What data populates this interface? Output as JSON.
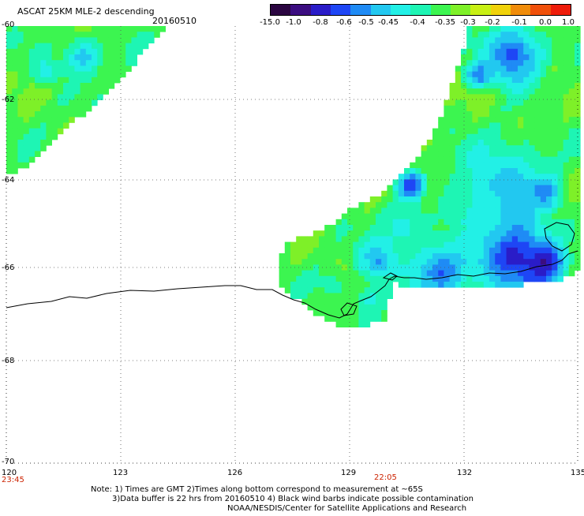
{
  "header": {
    "title": "ASCAT 25KM MLE-2 descending",
    "date": "20160510"
  },
  "colorbar": {
    "labels": [
      "-15.0",
      "-1.0",
      "-0.8",
      "-0.6",
      "-0.5",
      "-0.45",
      "-0.4",
      "-0.35",
      "-0.3",
      "-0.2",
      "-0.1",
      "0.0",
      "1.0"
    ],
    "colors": [
      "#2a0540",
      "#3b0d80",
      "#2a1cc8",
      "#1e46f5",
      "#1f8bf5",
      "#22c8f0",
      "#22f0e6",
      "#1ef5b4",
      "#3cf550",
      "#7ef028",
      "#c8f014",
      "#f0d20a",
      "#f08c0a",
      "#f0500a",
      "#ee1c0a"
    ]
  },
  "map": {
    "lat_labels": [
      "-60",
      "-62",
      "-64",
      "-66",
      "-68",
      "-70"
    ],
    "lon_labels": [
      "120",
      "123",
      "126",
      "129",
      "132",
      "135"
    ],
    "time_labels": [
      "23:45",
      "22:05"
    ],
    "lat_range": [
      -70,
      -60
    ],
    "lon_range": [
      120,
      135
    ]
  },
  "notes": {
    "line1": "Note: 1) Times are GMT 2)Times along bottom correspond to measurement at ~65S",
    "line2": "3)Data buffer is 22 hrs from 20160510 4) Black wind barbs indicate possible contamination",
    "line3": "NOAA/NESDIS/Center for Satellite Applications and Research"
  }
}
